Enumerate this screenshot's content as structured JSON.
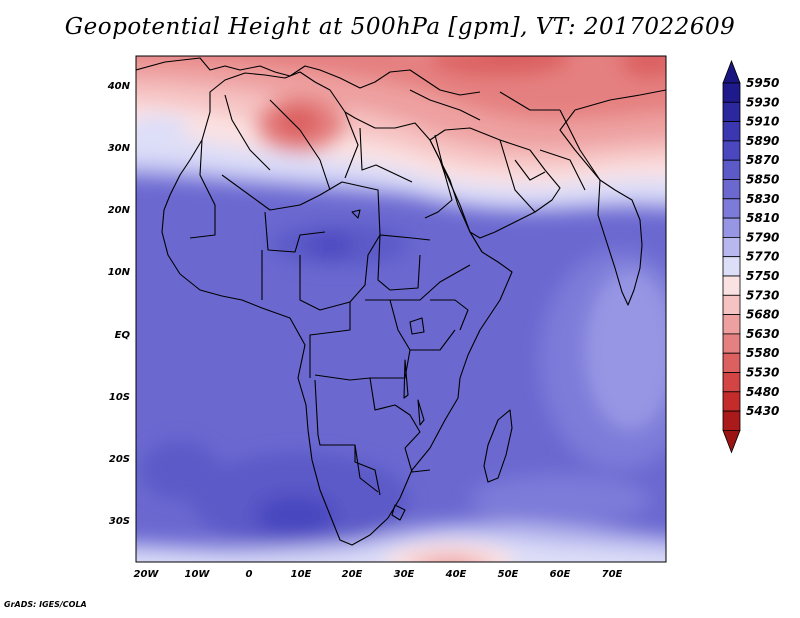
{
  "title": "Geopotential Height at 500hPa [gpm], VT: 2017022609",
  "credit": "GrADS: IGES/COLA",
  "map": {
    "lon_range": [
      -22,
      80
    ],
    "lat_range": [
      -37,
      45
    ],
    "x_ticks": [
      "20W",
      "10W",
      "0",
      "10E",
      "20E",
      "30E",
      "40E",
      "50E",
      "60E",
      "70E"
    ],
    "y_ticks": [
      "40N",
      "30N",
      "20N",
      "10N",
      "EQ",
      "10S",
      "20S",
      "30S"
    ]
  },
  "colorbar": {
    "levels": [
      "5950",
      "5930",
      "5910",
      "5890",
      "5870",
      "5850",
      "5830",
      "5810",
      "5790",
      "5770",
      "5750",
      "5730",
      "5680",
      "5630",
      "5580",
      "5530",
      "5480",
      "5430"
    ],
    "colors": [
      "#1e1a8c",
      "#2b279e",
      "#3a37b0",
      "#4a47bf",
      "#5c5ac8",
      "#6b69d0",
      "#7d7bd9",
      "#9796e4",
      "#b8b8ee",
      "#dddef8",
      "#fbe2e2",
      "#f6c3c3",
      "#eea0a0",
      "#e58080",
      "#dc6060",
      "#d34444",
      "#c42c2c",
      "#aa1a1a"
    ],
    "top_arrow_color": "#1a1680",
    "bottom_arrow_color": "#9a1414"
  }
}
